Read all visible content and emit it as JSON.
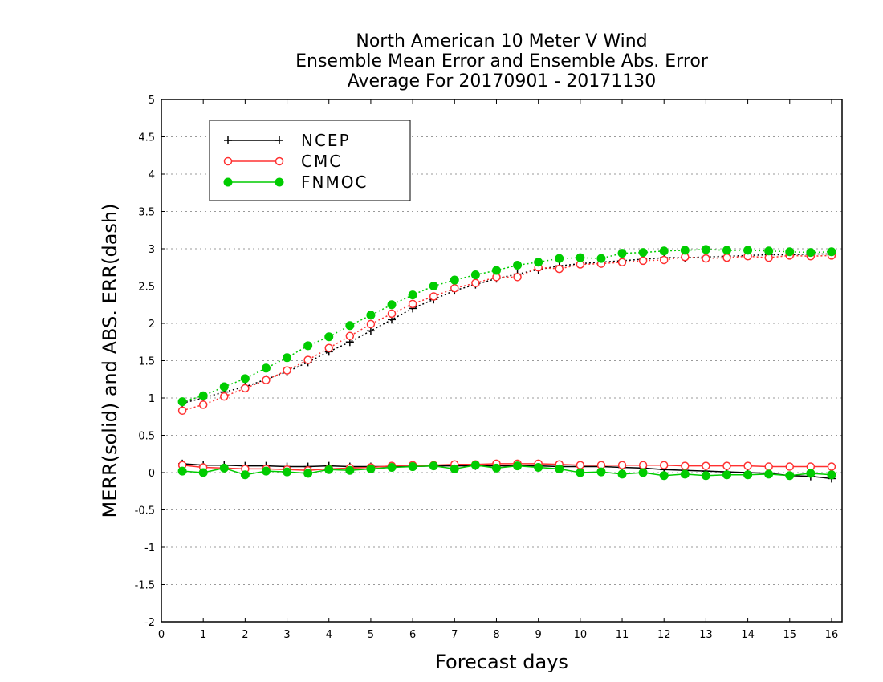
{
  "chart_data": {
    "type": "line",
    "title_lines": [
      "North American 10 Meter V Wind",
      "Ensemble Mean Error and Ensemble Abs. Error",
      "Average For 20170901 - 20171130"
    ],
    "xlabel": "Forecast days",
    "ylabel": "MERR(solid) and ABS. ERR(dash)",
    "xlim": [
      0,
      16.25
    ],
    "ylim": [
      -2,
      5
    ],
    "x_ticks": [
      0,
      1,
      2,
      3,
      4,
      5,
      6,
      7,
      8,
      9,
      10,
      11,
      12,
      13,
      14,
      15,
      16
    ],
    "y_ticks": [
      -2,
      -1.5,
      -1,
      -0.5,
      0,
      0.5,
      1,
      1.5,
      2,
      2.5,
      3,
      3.5,
      4,
      4.5,
      5
    ],
    "grid": "horizontal dotted",
    "legend_position": "top-left",
    "x": [
      0.5,
      1,
      1.5,
      2,
      2.5,
      3,
      3.5,
      4,
      4.5,
      5,
      5.5,
      6,
      6.5,
      7,
      7.5,
      8,
      8.5,
      9,
      9.5,
      10,
      10.5,
      11,
      11.5,
      12,
      12.5,
      13,
      13.5,
      14,
      14.5,
      15,
      15.5,
      16
    ],
    "series": [
      {
        "name": "NCEP",
        "color": "#000000",
        "marker": "plus",
        "merr": [
          0.12,
          0.1,
          0.1,
          0.09,
          0.09,
          0.08,
          0.08,
          0.09,
          0.08,
          0.08,
          0.08,
          0.08,
          0.09,
          0.09,
          0.09,
          0.09,
          0.09,
          0.09,
          0.08,
          0.08,
          0.08,
          0.07,
          0.06,
          0.04,
          0.03,
          0.02,
          0.01,
          0.0,
          -0.01,
          -0.04,
          -0.05,
          -0.08
        ],
        "abs_err": [
          0.93,
          1.0,
          1.08,
          1.15,
          1.25,
          1.35,
          1.48,
          1.62,
          1.75,
          1.9,
          2.05,
          2.2,
          2.32,
          2.44,
          2.52,
          2.6,
          2.66,
          2.72,
          2.77,
          2.8,
          2.82,
          2.84,
          2.86,
          2.88,
          2.88,
          2.89,
          2.9,
          2.91,
          2.92,
          2.92,
          2.93,
          2.93
        ]
      },
      {
        "name": "CMC",
        "color": "#ff3030",
        "marker": "open-circle",
        "merr": [
          0.1,
          0.07,
          0.06,
          0.05,
          0.05,
          0.04,
          0.03,
          0.05,
          0.06,
          0.07,
          0.09,
          0.1,
          0.1,
          0.11,
          0.11,
          0.12,
          0.12,
          0.12,
          0.11,
          0.1,
          0.1,
          0.1,
          0.1,
          0.1,
          0.09,
          0.09,
          0.09,
          0.09,
          0.08,
          0.08,
          0.08,
          0.08
        ],
        "abs_err": [
          0.83,
          0.91,
          1.02,
          1.13,
          1.24,
          1.37,
          1.51,
          1.67,
          1.83,
          1.99,
          2.13,
          2.26,
          2.36,
          2.47,
          2.54,
          2.62,
          2.62,
          2.75,
          2.73,
          2.79,
          2.8,
          2.82,
          2.84,
          2.85,
          2.89,
          2.87,
          2.88,
          2.9,
          2.88,
          2.91,
          2.9,
          2.91
        ]
      },
      {
        "name": "FNMOC",
        "color": "#00cc00",
        "marker": "filled-circle",
        "merr": [
          0.02,
          0.0,
          0.06,
          -0.03,
          0.02,
          0.01,
          -0.01,
          0.04,
          0.03,
          0.05,
          0.07,
          0.08,
          0.09,
          0.05,
          0.1,
          0.06,
          0.09,
          0.07,
          0.05,
          0.0,
          0.01,
          -0.02,
          0.0,
          -0.04,
          -0.02,
          -0.04,
          -0.03,
          -0.03,
          -0.02,
          -0.04,
          -0.01,
          -0.03
        ],
        "abs_err": [
          0.95,
          1.03,
          1.15,
          1.26,
          1.4,
          1.54,
          1.7,
          1.82,
          1.97,
          2.11,
          2.25,
          2.38,
          2.5,
          2.58,
          2.65,
          2.71,
          2.78,
          2.82,
          2.87,
          2.88,
          2.87,
          2.94,
          2.95,
          2.97,
          2.98,
          2.99,
          2.98,
          2.98,
          2.97,
          2.96,
          2.95,
          2.96
        ]
      }
    ]
  }
}
